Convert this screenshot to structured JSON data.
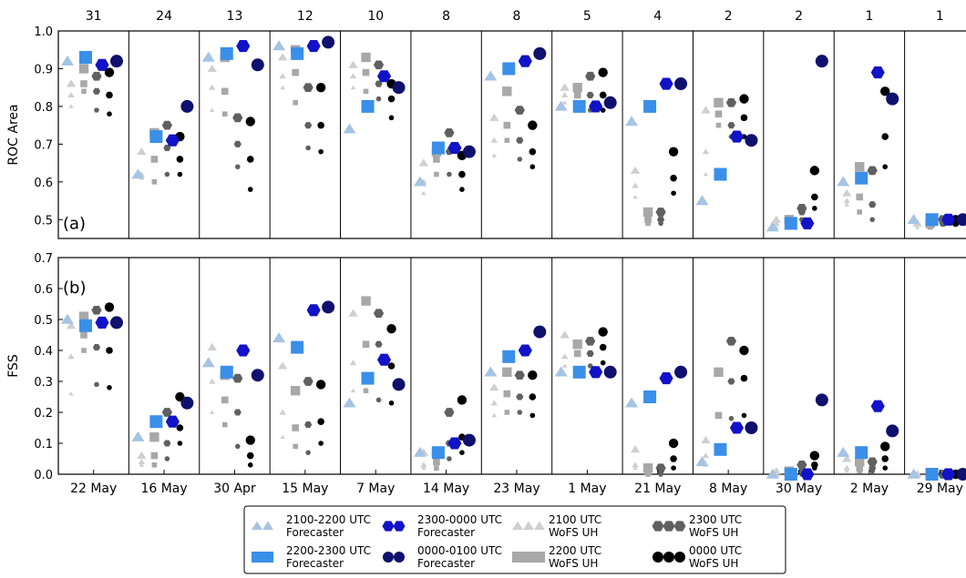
{
  "colors": {
    "count": "#ff8c00",
    "fc_2100": "#a6c4e3",
    "fc_2200": "#3a8fe8",
    "fc_2300": "#1212c8",
    "fc_0000": "#10106e",
    "wofs_2100": "#cfcfcf",
    "wofs_2200": "#a8a8a8",
    "wofs_2300": "#606060",
    "wofs_0000": "#000000"
  },
  "chart_data": {
    "type": "scatter",
    "categories": [
      "22 May",
      "16 May",
      "30 Apr",
      "15 May",
      "7 May",
      "14 May",
      "23 May",
      "1 May",
      "21 May",
      "8 May",
      "30 May",
      "2 May",
      "29 May"
    ],
    "counts": [
      "31",
      "24",
      "13",
      "12",
      "10",
      "8",
      "8",
      "5",
      "4",
      "2",
      "2",
      "1",
      "1"
    ],
    "legend": [
      {
        "key": "fc_2100",
        "label1": "2100-2200 UTC",
        "label2": "Forecaster",
        "marker": "triangle"
      },
      {
        "key": "fc_2200",
        "label1": "2200-2300 UTC",
        "label2": "Forecaster",
        "marker": "square"
      },
      {
        "key": "fc_2300",
        "label1": "2300-0000 UTC",
        "label2": "Forecaster",
        "marker": "hexagon"
      },
      {
        "key": "fc_0000",
        "label1": "0000-0100 UTC",
        "label2": "Forecaster",
        "marker": "circle"
      },
      {
        "key": "wofs_2100",
        "label1": "2100 UTC",
        "label2": "WoFS UH",
        "marker": "triangle"
      },
      {
        "key": "wofs_2200",
        "label1": "2200 UTC",
        "label2": "WoFS UH",
        "marker": "square"
      },
      {
        "key": "wofs_2300",
        "label1": "2300 UTC",
        "label2": "WoFS UH",
        "marker": "hexagon"
      },
      {
        "key": "wofs_0000",
        "label1": "0000 UTC",
        "label2": "WoFS UH",
        "marker": "circle"
      }
    ],
    "panels": [
      {
        "id": "a",
        "panel_label": "(a)",
        "ylabel": "ROC Area",
        "ylim": [
          0.45,
          1.0
        ],
        "yticks": [
          "0.5",
          "0.6",
          "0.7",
          "0.8",
          "0.9",
          "1.0"
        ],
        "forecaster": {
          "fc_2100": [
            0.92,
            0.62,
            0.93,
            0.96,
            0.74,
            0.6,
            0.88,
            0.8,
            0.76,
            0.55,
            0.48,
            0.6,
            0.5
          ],
          "fc_2200": [
            0.93,
            0.72,
            0.94,
            0.94,
            0.8,
            0.69,
            0.9,
            0.8,
            0.8,
            0.62,
            0.49,
            0.61,
            0.5
          ],
          "fc_2300": [
            0.91,
            0.71,
            0.96,
            0.96,
            0.88,
            0.69,
            0.92,
            0.8,
            0.86,
            0.72,
            0.49,
            0.89,
            0.5
          ],
          "fc_0000": [
            0.92,
            0.8,
            0.91,
            0.97,
            0.85,
            0.68,
            0.94,
            0.81,
            0.86,
            0.71,
            0.92,
            0.82,
            0.5
          ]
        },
        "wofs": {
          "wofs_2100": [
            [
              0.86,
              0.83,
              0.8
            ],
            [
              0.68,
              0.62,
              0.61
            ],
            [
              0.9,
              0.85,
              0.79
            ],
            [
              0.93,
              0.88,
              0.85
            ],
            [
              0.91,
              0.88,
              0.85
            ],
            [
              0.65,
              0.6,
              0.57
            ],
            [
              0.77,
              0.71,
              0.67
            ],
            [
              0.85,
              0.83,
              0.81
            ],
            [
              0.63,
              0.59,
              0.56
            ],
            [
              0.79,
              0.68,
              0.62
            ],
            [
              0.5,
              0.49,
              0.48
            ],
            [
              0.57,
              0.55,
              0.54
            ],
            [
              0.49,
              0.49,
              0.48
            ]
          ],
          "wofs_2200": [
            [
              0.9,
              0.86,
              0.84
            ],
            [
              0.73,
              0.66,
              0.6
            ],
            [
              0.93,
              0.84,
              0.78
            ],
            [
              0.95,
              0.89,
              0.81
            ],
            [
              0.93,
              0.89,
              0.84
            ],
            [
              0.68,
              0.66,
              0.62
            ],
            [
              0.84,
              0.75,
              0.71
            ],
            [
              0.85,
              0.83,
              0.8
            ],
            [
              0.52,
              0.5,
              0.49
            ],
            [
              0.81,
              0.78,
              0.75
            ],
            [
              0.5,
              0.49,
              0.48
            ],
            [
              0.64,
              0.56,
              0.52
            ],
            [
              0.49,
              0.49,
              0.48
            ]
          ],
          "wofs_2300": [
            [
              0.88,
              0.84,
              0.79
            ],
            [
              0.75,
              0.69,
              0.62
            ],
            [
              0.77,
              0.7,
              0.64
            ],
            [
              0.85,
              0.75,
              0.69
            ],
            [
              0.91,
              0.86,
              0.82
            ],
            [
              0.73,
              0.68,
              0.62
            ],
            [
              0.79,
              0.71,
              0.66
            ],
            [
              0.88,
              0.83,
              0.79
            ],
            [
              0.52,
              0.5,
              0.49
            ],
            [
              0.81,
              0.75,
              0.72
            ],
            [
              0.53,
              0.52,
              0.5
            ],
            [
              0.63,
              0.54,
              0.5
            ],
            [
              0.5,
              0.49,
              0.49
            ]
          ],
          "wofs_0000": [
            [
              0.89,
              0.83,
              0.78
            ],
            [
              0.72,
              0.66,
              0.62
            ],
            [
              0.76,
              0.66,
              0.58
            ],
            [
              0.85,
              0.75,
              0.68
            ],
            [
              0.86,
              0.82,
              0.77
            ],
            [
              0.67,
              0.62,
              0.58
            ],
            [
              0.75,
              0.68,
              0.64
            ],
            [
              0.89,
              0.83,
              0.79
            ],
            [
              0.68,
              0.61,
              0.57
            ],
            [
              0.82,
              0.77,
              0.72
            ],
            [
              0.63,
              0.56,
              0.53
            ],
            [
              0.84,
              0.72,
              0.64
            ],
            [
              0.5,
              0.49,
              0.49
            ]
          ]
        }
      },
      {
        "id": "b",
        "panel_label": "(b)",
        "ylabel": "FSS",
        "ylim": [
          0.0,
          0.7
        ],
        "yticks": [
          "0.0",
          "0.1",
          "0.2",
          "0.3",
          "0.4",
          "0.5",
          "0.6",
          "0.7"
        ],
        "forecaster": {
          "fc_2100": [
            0.5,
            0.12,
            0.36,
            0.44,
            0.23,
            0.07,
            0.33,
            0.33,
            0.23,
            0.04,
            0.0,
            0.07,
            0.0
          ],
          "fc_2200": [
            0.48,
            0.17,
            0.33,
            0.41,
            0.31,
            0.07,
            0.38,
            0.33,
            0.25,
            0.08,
            0.0,
            0.07,
            0.0
          ],
          "fc_2300": [
            0.49,
            0.17,
            0.4,
            0.53,
            0.37,
            0.1,
            0.4,
            0.33,
            0.31,
            0.15,
            0.0,
            0.22,
            0.0
          ],
          "fc_0000": [
            0.49,
            0.23,
            0.32,
            0.54,
            0.29,
            0.11,
            0.46,
            0.33,
            0.33,
            0.15,
            0.24,
            0.14,
            0.0
          ]
        },
        "wofs": {
          "wofs_2100": [
            [
              0.48,
              0.38,
              0.26
            ],
            [
              0.06,
              0.04,
              0.03
            ],
            [
              0.41,
              0.3,
              0.2
            ],
            [
              0.35,
              0.2,
              0.12
            ],
            [
              0.52,
              0.36,
              0.27
            ],
            [
              0.07,
              0.03,
              0.02
            ],
            [
              0.28,
              0.23,
              0.19
            ],
            [
              0.45,
              0.38,
              0.35
            ],
            [
              0.08,
              0.03,
              0.02
            ],
            [
              0.11,
              0.06,
              0.03
            ],
            [
              0.01,
              0.0,
              0.0
            ],
            [
              0.05,
              0.02,
              0.01
            ],
            [
              0.0,
              0.0,
              0.0
            ]
          ],
          "wofs_2200": [
            [
              0.51,
              0.45,
              0.4
            ],
            [
              0.12,
              0.06,
              0.03
            ],
            [
              0.32,
              0.24,
              0.16
            ],
            [
              0.27,
              0.15,
              0.09
            ],
            [
              0.56,
              0.42,
              0.27
            ],
            [
              0.07,
              0.04,
              0.02
            ],
            [
              0.33,
              0.26,
              0.2
            ],
            [
              0.42,
              0.39,
              0.34
            ],
            [
              0.02,
              0.01,
              0.0
            ],
            [
              0.33,
              0.19,
              0.09
            ],
            [
              0.01,
              0.0,
              0.0
            ],
            [
              0.04,
              0.02,
              0.01
            ],
            [
              0.0,
              0.0,
              0.0
            ]
          ],
          "wofs_2300": [
            [
              0.53,
              0.41,
              0.29
            ],
            [
              0.2,
              0.1,
              0.05
            ],
            [
              0.31,
              0.2,
              0.09
            ],
            [
              0.3,
              0.16,
              0.07
            ],
            [
              0.52,
              0.42,
              0.24
            ],
            [
              0.2,
              0.1,
              0.05
            ],
            [
              0.32,
              0.25,
              0.2
            ],
            [
              0.43,
              0.39,
              0.35
            ],
            [
              0.02,
              0.01,
              0.0
            ],
            [
              0.43,
              0.3,
              0.18
            ],
            [
              0.03,
              0.01,
              0.0
            ],
            [
              0.04,
              0.02,
              0.01
            ],
            [
              0.0,
              0.0,
              0.0
            ]
          ],
          "wofs_0000": [
            [
              0.54,
              0.4,
              0.28
            ],
            [
              0.25,
              0.15,
              0.1
            ],
            [
              0.11,
              0.06,
              0.03
            ],
            [
              0.29,
              0.17,
              0.1
            ],
            [
              0.47,
              0.35,
              0.23
            ],
            [
              0.24,
              0.12,
              0.07
            ],
            [
              0.32,
              0.25,
              0.19
            ],
            [
              0.46,
              0.41,
              0.36
            ],
            [
              0.1,
              0.05,
              0.02
            ],
            [
              0.4,
              0.31,
              0.19
            ],
            [
              0.06,
              0.03,
              0.02
            ],
            [
              0.09,
              0.05,
              0.02
            ],
            [
              0.0,
              0.0,
              0.0
            ]
          ]
        }
      }
    ]
  }
}
